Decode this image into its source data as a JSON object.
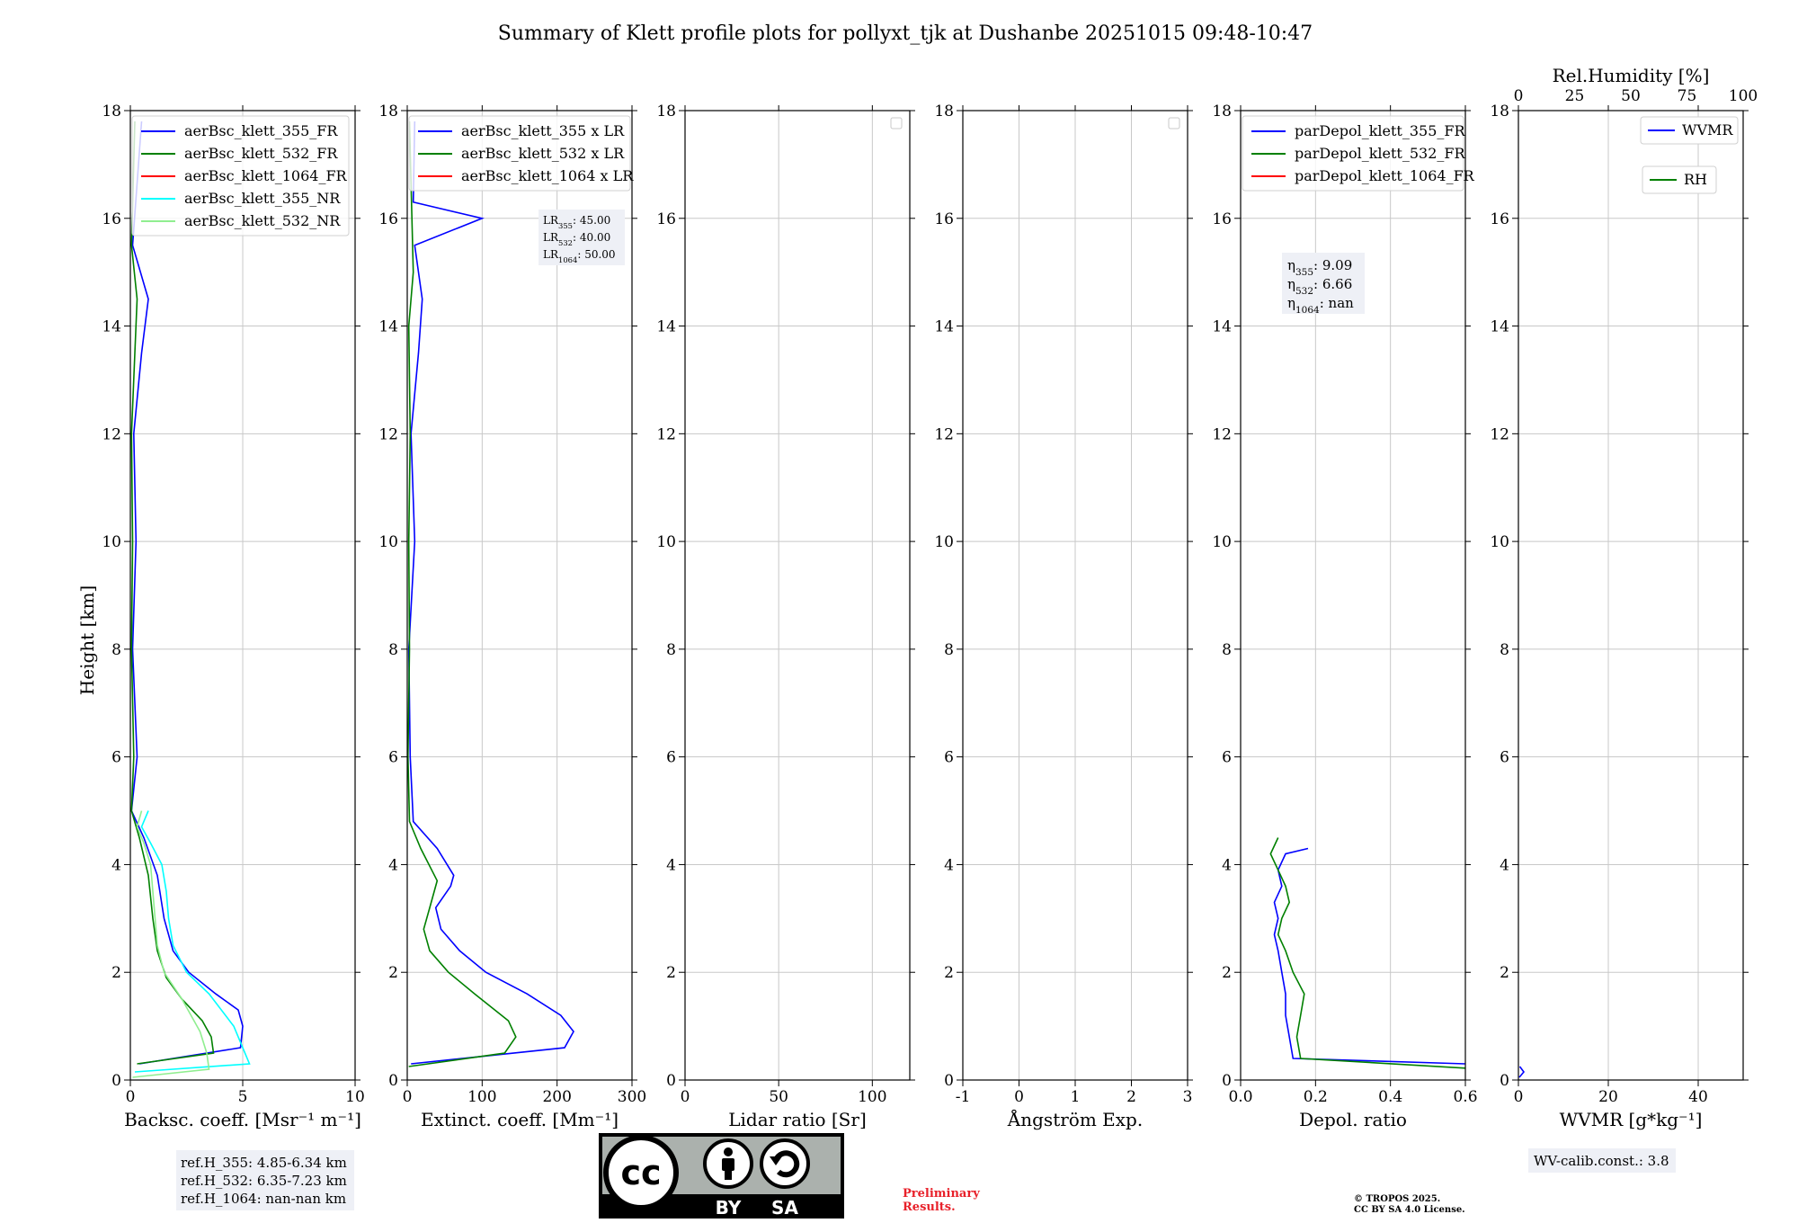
{
  "chart_data": {
    "title": "Summary of Klett profile plots for pollyxt_tjk at Dushanbe 20251015 09:48-10:47",
    "ylabel": "Height [km]",
    "ylim": [
      0,
      18
    ],
    "yticks": [
      0,
      2,
      4,
      6,
      8,
      10,
      12,
      14,
      16,
      18
    ],
    "panels": [
      {
        "id": "backscatter",
        "type": "line",
        "xlabel": "Backsc. coeff. [Msr⁻¹ m⁻¹]",
        "xlim": [
          0,
          10
        ],
        "xticks": [
          0,
          5,
          10
        ],
        "legend": [
          {
            "label": "aerBsc_klett_355_FR",
            "color": "#0000ff"
          },
          {
            "label": "aerBsc_klett_532_FR",
            "color": "#008000"
          },
          {
            "label": "aerBsc_klett_1064_FR",
            "color": "#ff0000"
          },
          {
            "label": "aerBsc_klett_355_NR",
            "color": "#00ffff"
          },
          {
            "label": "aerBsc_klett_532_NR",
            "color": "#90ee90"
          }
        ],
        "series": [
          {
            "name": "aerBsc_klett_355_FR",
            "color": "#0000ff",
            "x": [
              0.4,
              4.9,
              5.0,
              4.8,
              3.8,
              2.6,
              1.9,
              1.5,
              1.2,
              0.6,
              0.05,
              0.3,
              0.1,
              0.25,
              0.15,
              0.5,
              0.8,
              0.1,
              0.5
            ],
            "y": [
              0.3,
              0.6,
              1.0,
              1.3,
              1.6,
              2.0,
              2.4,
              3.0,
              3.8,
              4.5,
              5.0,
              6.0,
              8.0,
              10.0,
              12.0,
              13.5,
              14.5,
              15.5,
              17.8
            ]
          },
          {
            "name": "aerBsc_klett_532_FR",
            "color": "#008000",
            "x": [
              0.3,
              3.7,
              3.6,
              3.2,
              2.3,
              1.6,
              1.2,
              1.0,
              0.8,
              0.4,
              0.05,
              0.15,
              0.05,
              0.1,
              0.05,
              0.2,
              0.3,
              0.05,
              0.2
            ],
            "y": [
              0.3,
              0.5,
              0.8,
              1.1,
              1.5,
              1.9,
              2.4,
              3.0,
              3.8,
              4.5,
              5.0,
              6.0,
              8.0,
              10.0,
              12.0,
              13.5,
              14.5,
              15.5,
              17.8
            ]
          },
          {
            "name": "aerBsc_klett_355_NR",
            "color": "#00ffff",
            "x": [
              0.2,
              5.3,
              5.0,
              4.6,
              3.5,
              2.5,
              1.9,
              1.7,
              1.6,
              1.4,
              0.9,
              0.5,
              0.8
            ],
            "y": [
              0.15,
              0.3,
              0.6,
              1.0,
              1.6,
              2.0,
              2.5,
              3.0,
              3.5,
              4.0,
              4.4,
              4.7,
              5.0
            ]
          },
          {
            "name": "aerBsc_klett_532_NR",
            "color": "#90ee90",
            "x": [
              0.1,
              3.5,
              3.4,
              3.1,
              2.3,
              1.5,
              1.2,
              1.1,
              1.0,
              0.9,
              0.6,
              0.3,
              0.5
            ],
            "y": [
              0.05,
              0.2,
              0.5,
              0.9,
              1.5,
              2.0,
              2.5,
              3.0,
              3.5,
              4.0,
              4.4,
              4.7,
              5.0
            ]
          }
        ]
      },
      {
        "id": "extinction",
        "type": "line",
        "xlabel": "Extinct. coeff. [Mm⁻¹]",
        "xlim": [
          0,
          300
        ],
        "xticks": [
          0,
          100,
          200,
          300
        ],
        "legend": [
          {
            "label": "aerBsc_klett_355 x LR",
            "color": "#0000ff"
          },
          {
            "label": "aerBsc_klett_532 x LR",
            "color": "#008000"
          },
          {
            "label": "aerBsc_klett_1064 x LR",
            "color": "#ff0000"
          }
        ],
        "series": [
          {
            "name": "aerBsc_klett_355 x LR",
            "color": "#0000ff",
            "x": [
              5,
              210,
              222,
              205,
              160,
              105,
              70,
              45,
              38,
              58,
              62,
              40,
              8,
              4,
              2,
              10,
              5,
              15,
              20,
              10,
              100,
              8,
              10
            ],
            "y": [
              0.3,
              0.6,
              0.9,
              1.2,
              1.6,
              2.0,
              2.4,
              2.8,
              3.2,
              3.6,
              3.8,
              4.3,
              4.8,
              6.0,
              8.0,
              10.0,
              12.0,
              13.5,
              14.5,
              15.5,
              16.0,
              16.3,
              17.8
            ]
          },
          {
            "name": "aerBsc_klett_532 x LR",
            "color": "#008000",
            "x": [
              2,
              130,
              145,
              135,
              90,
              55,
              30,
              22,
              30,
              40,
              18,
              3,
              1,
              3,
              2,
              4,
              2,
              8,
              3
            ],
            "y": [
              0.25,
              0.5,
              0.8,
              1.1,
              1.6,
              2.0,
              2.4,
              2.8,
              3.2,
              3.7,
              4.3,
              4.8,
              6.0,
              8.0,
              10.0,
              12.0,
              14.0,
              15.0,
              17.8
            ]
          }
        ],
        "annotation": [
          "LR355: 45.00",
          "LR532: 40.00",
          "LR1064: 50.00"
        ]
      },
      {
        "id": "lidar_ratio",
        "type": "line",
        "xlabel": "Lidar ratio [Sr]",
        "xlim": [
          0,
          120
        ],
        "xticks": [
          0,
          50,
          100
        ],
        "series": []
      },
      {
        "id": "angstrom",
        "type": "line",
        "xlabel": "Ångström Exp.",
        "xlim": [
          -1,
          3
        ],
        "xticks": [
          -1,
          0,
          1,
          2,
          3
        ],
        "series": []
      },
      {
        "id": "depol",
        "type": "line",
        "xlabel": "Depol. ratio",
        "xlim": [
          0,
          0.6
        ],
        "xticks": [
          0.0,
          0.2,
          0.4,
          0.6
        ],
        "xtick_labels": [
          "0.0",
          "0.2",
          "0.4",
          "0.6"
        ],
        "legend": [
          {
            "label": "parDepol_klett_355_FR",
            "color": "#0000ff"
          },
          {
            "label": "parDepol_klett_532_FR",
            "color": "#008000"
          },
          {
            "label": "parDepol_klett_1064_FR",
            "color": "#ff0000"
          }
        ],
        "series": [
          {
            "name": "parDepol_klett_355_FR",
            "color": "#0000ff",
            "x": [
              0.6,
              0.14,
              0.13,
              0.12,
              0.12,
              0.11,
              0.1,
              0.09,
              0.1,
              0.09,
              0.11,
              0.1,
              0.12,
              0.18
            ],
            "y": [
              0.3,
              0.4,
              0.8,
              1.2,
              1.6,
              2.0,
              2.4,
              2.7,
              3.0,
              3.3,
              3.6,
              3.9,
              4.2,
              4.3
            ]
          },
          {
            "name": "parDepol_klett_532_FR",
            "color": "#008000",
            "x": [
              0.6,
              0.16,
              0.15,
              0.16,
              0.17,
              0.14,
              0.12,
              0.1,
              0.11,
              0.13,
              0.12,
              0.1,
              0.08,
              0.1
            ],
            "y": [
              0.22,
              0.4,
              0.8,
              1.2,
              1.6,
              2.0,
              2.4,
              2.7,
              3.0,
              3.3,
              3.6,
              3.9,
              4.2,
              4.5
            ]
          }
        ],
        "annotation": [
          "η355: 9.09",
          "η532: 6.66",
          "η1064: nan"
        ]
      },
      {
        "id": "wvmr",
        "type": "line",
        "xlabel": "WVMR [g*kg⁻¹]",
        "xlim": [
          0,
          50
        ],
        "xticks": [
          0,
          20,
          40
        ],
        "top_xlabel": "Rel.Humidity [%]",
        "top_xlim": [
          0,
          100
        ],
        "top_xticks": [
          0,
          25,
          50,
          75,
          100
        ],
        "legend": [
          {
            "label": "WVMR",
            "color": "#0000ff"
          },
          {
            "label": "RH",
            "color": "#008000"
          }
        ],
        "series": [
          {
            "name": "WVMR",
            "color": "#0000ff",
            "x": [
              0.2,
              1.2,
              0.3
            ],
            "y": [
              0.05,
              0.15,
              0.25
            ]
          }
        ]
      }
    ],
    "info": {
      "ref_heights": [
        "ref.H_355: 4.85-6.34 km",
        "ref.H_532: 6.35-7.23 km",
        "ref.H_1064: nan-nan km"
      ],
      "wv_calib": "WV-calib.const.: 3.8"
    }
  },
  "footer": {
    "license_logo_labels": [
      "BY",
      "SA"
    ],
    "license_logo_glyph": "cc",
    "preliminary": [
      "Preliminary",
      "Results."
    ],
    "copyright": [
      "© TROPOS 2025.",
      "CC BY SA 4.0 License."
    ]
  }
}
